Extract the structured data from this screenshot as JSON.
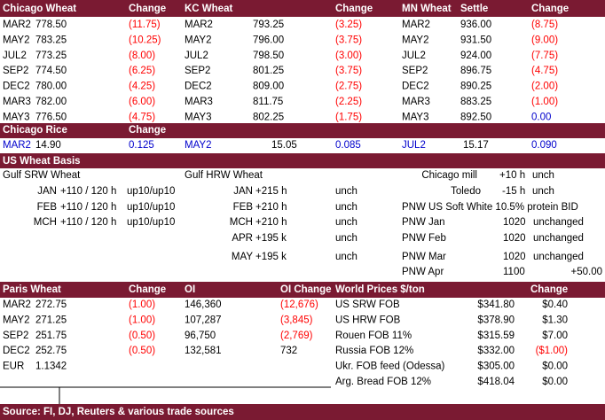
{
  "grains": {
    "headers": [
      "Chicago Wheat",
      "Change",
      "KC Wheat",
      "Change",
      "MN Wheat",
      "Settle",
      "Change"
    ],
    "rows": [
      [
        "MAR2",
        "778.50",
        "(11.75)",
        "MAR2",
        "793.25",
        "(3.25)",
        "MAR2",
        "936.00",
        "(8.75)"
      ],
      [
        "MAY2",
        "783.25",
        "(10.25)",
        "MAY2",
        "796.00",
        "(3.75)",
        "MAY2",
        "931.50",
        "(9.00)"
      ],
      [
        "JUL2",
        "773.25",
        "(8.00)",
        "JUL2",
        "798.50",
        "(3.00)",
        "JUL2",
        "924.00",
        "(7.75)"
      ],
      [
        "SEP2",
        "774.50",
        "(6.25)",
        "SEP2",
        "801.25",
        "(3.75)",
        "SEP2",
        "896.75",
        "(4.75)"
      ],
      [
        "DEC2",
        "780.00",
        "(4.25)",
        "DEC2",
        "809.00",
        "(2.75)",
        "DEC2",
        "890.25",
        "(2.00)"
      ],
      [
        "MAR3",
        "782.00",
        "(6.00)",
        "MAR3",
        "811.75",
        "(2.25)",
        "MAR3",
        "883.25",
        "(1.00)"
      ],
      [
        "MAY3",
        "776.50",
        "(4.75)",
        "MAY3",
        "802.25",
        "(1.75)",
        "MAY3",
        "892.50",
        "0.00"
      ]
    ]
  },
  "rice": {
    "headers": [
      "Chicago Rice",
      "Change"
    ],
    "row": [
      "MAR2",
      "14.90",
      "0.125",
      "MAY2",
      "15.05",
      "0.085",
      "JUL2",
      "15.17",
      "0.090"
    ]
  },
  "basis": {
    "title": "US Wheat Basis",
    "rows": [
      [
        "Gulf SRW Wheat",
        "Gulf HRW Wheat",
        "Chicago mill",
        "+10 h",
        "unch"
      ],
      [
        "JAN",
        "+110 / 120 h",
        "up10/up10",
        "JAN",
        "+215 h",
        "unch",
        "Toledo",
        "-15 h",
        "unch"
      ],
      [
        "FEB",
        "+110 / 120 h",
        "up10/up10",
        "FEB",
        "+210 h",
        "unch",
        "PNW US Soft White 10.5% protein BID"
      ],
      [
        "MCH",
        "+110 / 120 h",
        "up10/up10",
        "MCH",
        "+210 h",
        "unch",
        "PNW Jan",
        "1020",
        "unchanged"
      ],
      [
        "APR",
        "+195 k",
        "unch",
        "PNW Feb",
        "1020",
        "unchanged"
      ],
      [
        "MAY",
        "+195 k",
        "unch",
        "PNW Mar",
        "1020",
        "unchanged"
      ],
      [
        "PNW Apr",
        "1100",
        "+50.00"
      ]
    ]
  },
  "paris": {
    "headers": [
      "Paris Wheat",
      "Change",
      "OI",
      "OI Change"
    ],
    "rows": [
      [
        "MAR2",
        "272.75",
        "(1.00)",
        "146,360",
        "(12,676)"
      ],
      [
        "MAY2",
        "271.25",
        "(1.00)",
        "107,287",
        "(3,845)"
      ],
      [
        "SEP2",
        "251.75",
        "(0.50)",
        "96,750",
        "(2,769)"
      ],
      [
        "DEC2",
        "252.75",
        "(0.50)",
        "132,581",
        "732"
      ],
      [
        "EUR",
        "1.1342"
      ]
    ]
  },
  "world": {
    "headers": [
      "World Prices $/ton",
      "Change"
    ],
    "rows": [
      [
        "US SRW FOB",
        "$341.80",
        "$0.40"
      ],
      [
        "US HRW FOB",
        "$378.90",
        "$1.30"
      ],
      [
        "Rouen FOB 11%",
        "$315.59",
        "$7.00"
      ],
      [
        "Russia FOB 12%",
        "$332.00",
        "($1.00)"
      ],
      [
        "Ukr. FOB feed (Odessa)",
        "$305.00",
        "$0.00"
      ],
      [
        "Arg. Bread FOB 12%",
        "$418.04",
        "$0.00"
      ]
    ]
  },
  "source": "Source: FI, DJ, Reuters & various trade sources"
}
